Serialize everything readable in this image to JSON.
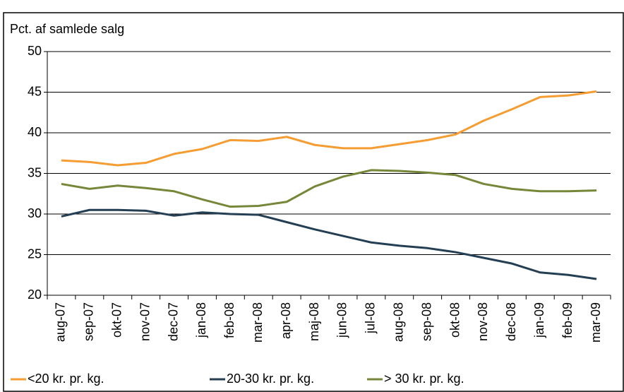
{
  "chart_data": {
    "type": "line",
    "y_label": "Pct. af samlede salg",
    "categories": [
      "aug-07",
      "sep-07",
      "okt-07",
      "nov-07",
      "dec-07",
      "jan-08",
      "feb-08",
      "mar-08",
      "apr-08",
      "maj-08",
      "jun-08",
      "jul-08",
      "aug-08",
      "sep-08",
      "okt-08",
      "nov-08",
      "dec-08",
      "jan-09",
      "feb-09",
      "mar-09"
    ],
    "series": [
      {
        "name": "<20 kr. pr. kg.",
        "color": "#f59d32",
        "values": [
          36.6,
          36.4,
          36.0,
          36.3,
          37.4,
          38.0,
          39.1,
          39.0,
          39.5,
          38.5,
          38.1,
          38.1,
          38.6,
          39.1,
          39.8,
          41.5,
          42.9,
          44.4,
          44.6,
          45.1
        ]
      },
      {
        "name": "20-30 kr. pr. kg.",
        "color": "#243f53",
        "values": [
          29.7,
          30.5,
          30.5,
          30.4,
          29.8,
          30.2,
          30.0,
          29.9,
          29.0,
          28.1,
          27.3,
          26.5,
          26.1,
          25.8,
          25.3,
          24.6,
          23.9,
          22.8,
          22.5,
          22.0
        ]
      },
      {
        "name": "> 30 kr. pr. kg.",
        "color": "#77873a",
        "values": [
          33.7,
          33.1,
          33.5,
          33.2,
          32.8,
          31.8,
          30.9,
          31.0,
          31.5,
          33.4,
          34.6,
          35.4,
          35.3,
          35.1,
          34.8,
          33.7,
          33.1,
          32.8,
          32.8,
          32.9
        ]
      }
    ],
    "ylim": [
      20,
      50
    ],
    "yticks": [
      20,
      25,
      30,
      35,
      40,
      45,
      50
    ],
    "grid": true,
    "legend": "bottom"
  }
}
